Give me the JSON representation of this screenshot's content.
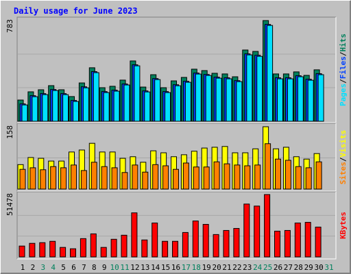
{
  "chart_data": [
    {
      "type": "bar",
      "title": "Daily usage for June 2023",
      "ylim": [
        0,
        783
      ],
      "yticks": [
        783
      ],
      "legend_separator": "/",
      "series": [
        {
          "name": "Hits",
          "color": "#00805c",
          "values": [
            165,
            229,
            245,
            277,
            245,
            192,
            298,
            416,
            261,
            272,
            320,
            469,
            266,
            362,
            261,
            314,
            341,
            405,
            394,
            373,
            368,
            346,
            554,
            543,
            783,
            368,
            368,
            384,
            357,
            400,
            null
          ]
        },
        {
          "name": "Files",
          "color": "#0040ff",
          "values": [
            135,
            199,
            215,
            247,
            215,
            162,
            268,
            386,
            231,
            242,
            290,
            439,
            236,
            332,
            231,
            284,
            311,
            375,
            364,
            343,
            338,
            316,
            524,
            513,
            753,
            338,
            338,
            354,
            327,
            370,
            null
          ]
        },
        {
          "name": "Pages",
          "color": "#00e0ff",
          "values": [
            127,
            191,
            207,
            239,
            207,
            154,
            260,
            378,
            223,
            234,
            282,
            431,
            228,
            324,
            223,
            276,
            303,
            367,
            356,
            335,
            330,
            308,
            516,
            505,
            745,
            330,
            330,
            346,
            319,
            362,
            null
          ]
        }
      ]
    },
    {
      "type": "bar",
      "ylim": [
        0,
        158
      ],
      "yticks": [
        158
      ],
      "legend_separator": "/",
      "series": [
        {
          "name": "Visits",
          "color": "#ffff00",
          "values": [
            62,
            80,
            78,
            71,
            71,
            94,
            99,
            116,
            94,
            94,
            78,
            82,
            68,
            97,
            92,
            82,
            87,
            96,
            104,
            106,
            108,
            92,
            92,
            102,
            158,
            102,
            106,
            82,
            76,
            90,
            null
          ]
        },
        {
          "name": "Sites",
          "color": "#ff8000",
          "values": [
            50,
            54,
            49,
            57,
            54,
            61,
            47,
            68,
            57,
            54,
            42,
            61,
            43,
            62,
            59,
            50,
            66,
            56,
            56,
            69,
            64,
            61,
            59,
            61,
            115,
            76,
            73,
            57,
            54,
            69,
            null
          ]
        }
      ]
    },
    {
      "type": "bar",
      "ylim": [
        0,
        51478
      ],
      "yticks": [
        51478
      ],
      "categories": [
        "1",
        "2",
        "3",
        "4",
        "5",
        "6",
        "7",
        "8",
        "9",
        "10",
        "11",
        "12",
        "13",
        "14",
        "15",
        "16",
        "17",
        "18",
        "19",
        "20",
        "21",
        "22",
        "23",
        "24",
        "25",
        "26",
        "27",
        "28",
        "29",
        "30",
        "31"
      ],
      "category_colors": [
        "#000000",
        "#000000",
        "#00805c",
        "#00805c",
        "#000000",
        "#000000",
        "#000000",
        "#000000",
        "#000000",
        "#00805c",
        "#00805c",
        "#000000",
        "#000000",
        "#000000",
        "#000000",
        "#000000",
        "#00805c",
        "#00805c",
        "#000000",
        "#000000",
        "#000000",
        "#000000",
        "#000000",
        "#00805c",
        "#00805c",
        "#000000",
        "#000000",
        "#000000",
        "#000000",
        "#000000",
        "#00805c"
      ],
      "series": [
        {
          "name": "KBytes",
          "color": "#ff0000",
          "values": [
            8952,
            11190,
            11750,
            12869,
            7833,
            6714,
            15106,
            19023,
            7833,
            14547,
            17904,
            36368,
            13988,
            27975,
            12869,
            12869,
            20142,
            29654,
            26856,
            18464,
            21821,
            23499,
            43641,
            41963,
            51478,
            21262,
            21821,
            27975,
            28535,
            24618,
            null
          ]
        }
      ]
    }
  ]
}
